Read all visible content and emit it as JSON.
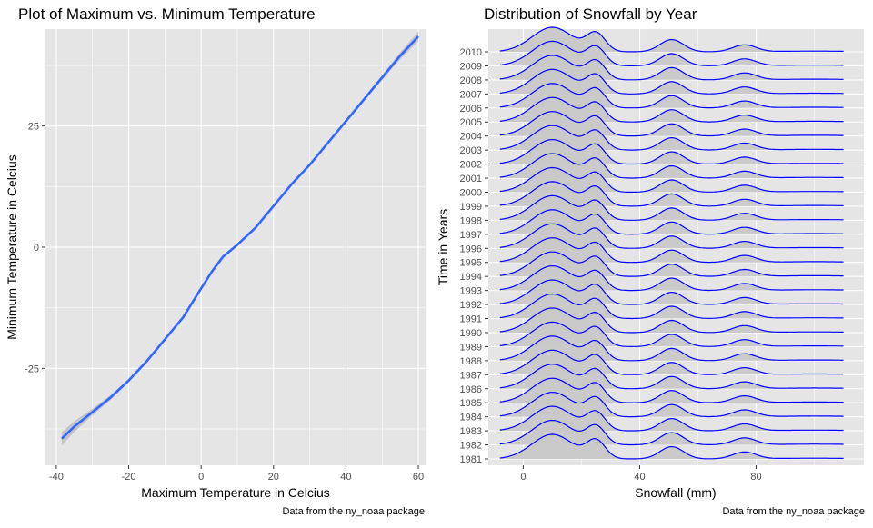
{
  "colors": {
    "panel_bg": "#e5e5e5",
    "grid_major": "#ffffff",
    "smooth_line": "#3366ff",
    "confidence_band": "#bfbfbf",
    "ridge_line": "#0000ff",
    "ridge_fill": "#c8c8c8",
    "text": "#000000",
    "tick_text": "#4d4d4d"
  },
  "chart_data": [
    {
      "type": "line",
      "title": "Plot of Maximum vs. Minimum Temperature",
      "xlabel": "Maximum Temperature in Celcius",
      "ylabel": "Minimum Temperature in Celcius",
      "caption": "Data from the ny_noaa package",
      "xlim": [
        -43,
        62
      ],
      "ylim": [
        -45,
        45
      ],
      "x_ticks": [
        -40,
        -20,
        0,
        20,
        40,
        60
      ],
      "x_tick_labels": [
        "-40",
        "-20",
        "0",
        "20",
        "40",
        "60"
      ],
      "y_ticks": [
        -25,
        0,
        25
      ],
      "y_tick_labels": [
        "-25",
        "0",
        "25"
      ],
      "grid": true,
      "series": [
        {
          "x": [
            -38.5,
            -35,
            -30,
            -25,
            -20,
            -15,
            -10,
            -5,
            0,
            3,
            6,
            10,
            15,
            20,
            25,
            30,
            35,
            40,
            45,
            50,
            55,
            60
          ],
          "y": [
            -39.5,
            -37,
            -34,
            -31,
            -27.5,
            -23.5,
            -19,
            -14.5,
            -8.5,
            -5,
            -2,
            0.5,
            4,
            8.5,
            13,
            17,
            21.5,
            26,
            30.5,
            35,
            39.5,
            43.5
          ],
          "band_halfwidth": [
            1.4,
            1.1,
            0.7,
            0.5,
            0.4,
            0.35,
            0.3,
            0.3,
            0.3,
            0.3,
            0.3,
            0.3,
            0.3,
            0.3,
            0.3,
            0.3,
            0.3,
            0.35,
            0.4,
            0.5,
            0.7,
            1.0
          ]
        }
      ]
    },
    {
      "type": "area",
      "subtype": "ridgeline",
      "title": "Distribution of Snowfall by Year",
      "xlabel": "Snowfall (mm)",
      "ylabel": "Time in Years",
      "caption": "Data from the ny_noaa package",
      "xlim": [
        -12,
        117
      ],
      "x_ticks": [
        0,
        40,
        80
      ],
      "x_tick_labels": [
        "0",
        "40",
        "80"
      ],
      "x_range": [
        -8,
        110
      ],
      "grid": true,
      "categories": [
        "1981",
        "1982",
        "1983",
        "1984",
        "1985",
        "1986",
        "1987",
        "1988",
        "1989",
        "1990",
        "1991",
        "1992",
        "1993",
        "1994",
        "1995",
        "1996",
        "1997",
        "1998",
        "1999",
        "2000",
        "2001",
        "2002",
        "2003",
        "2004",
        "2005",
        "2006",
        "2007",
        "2008",
        "2009",
        "2010"
      ],
      "density_shape": {
        "peaks": [
          {
            "center": 10,
            "width": 7,
            "height": 1.0
          },
          {
            "center": 25,
            "width": 3.2,
            "height": 0.72
          },
          {
            "center": 51,
            "width": 4,
            "height": 0.5
          },
          {
            "center": 76,
            "width": 4,
            "height": 0.28
          },
          {
            "center": 100,
            "width": 12,
            "height": 0.03
          }
        ]
      }
    }
  ]
}
